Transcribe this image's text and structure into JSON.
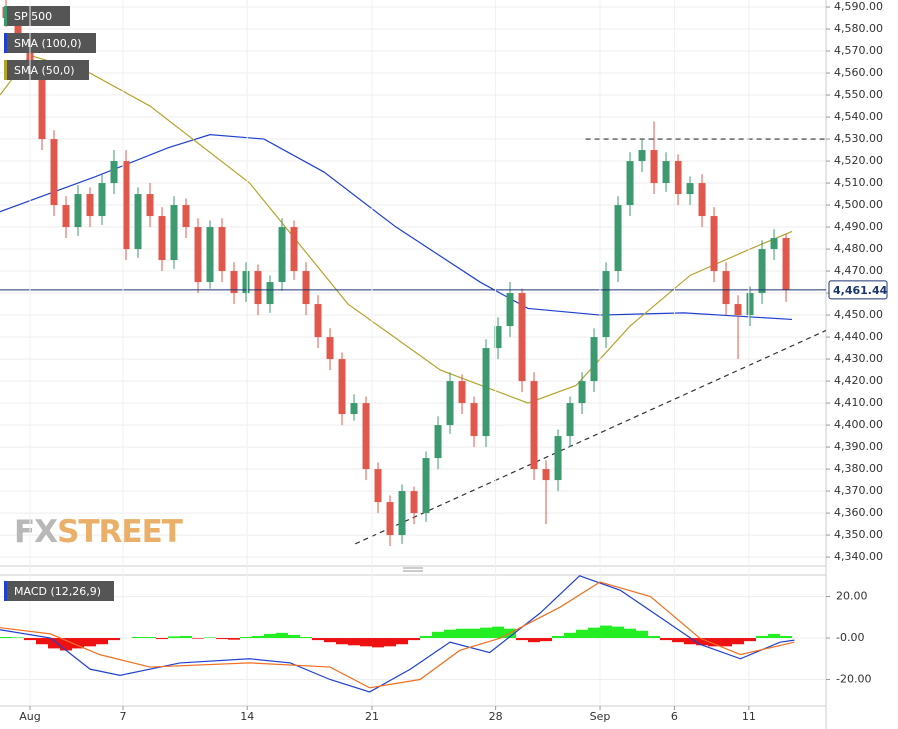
{
  "chart_data": [
    {
      "type": "candlestick",
      "name": "SP 500",
      "up_color": "#3d9970",
      "down_color": "#e0584c",
      "xlim": [
        0,
        68.83
      ],
      "ylim": [
        4336.4,
        4593.2
      ],
      "yticks": [
        {
          "value": 4340,
          "label": "4,340.00"
        },
        {
          "value": 4350,
          "label": "4,350.00"
        },
        {
          "value": 4360,
          "label": "4,360.00"
        },
        {
          "value": 4370,
          "label": "4,370.00"
        },
        {
          "value": 4380,
          "label": "4,380.00"
        },
        {
          "value": 4390,
          "label": "4,390.00"
        },
        {
          "value": 4400,
          "label": "4,400.00"
        },
        {
          "value": 4410,
          "label": "4,410.00"
        },
        {
          "value": 4420,
          "label": "4,420.00"
        },
        {
          "value": 4430,
          "label": "4,430.00"
        },
        {
          "value": 4440,
          "label": "4,440.00"
        },
        {
          "value": 4450,
          "label": "4,450.00"
        },
        {
          "value": 4460,
          "label": "4,460.00"
        },
        {
          "value": 4470,
          "label": "4,470.00"
        },
        {
          "value": 4480,
          "label": "4,480.00"
        },
        {
          "value": 4490,
          "label": "4,490.00"
        },
        {
          "value": 4500,
          "label": "4,500.00"
        },
        {
          "value": 4510,
          "label": "4,510.00"
        },
        {
          "value": 4520,
          "label": "4,520.00"
        },
        {
          "value": 4530,
          "label": "4,530.00"
        },
        {
          "value": 4540,
          "label": "4,540.00"
        },
        {
          "value": 4550,
          "label": "4,550.00"
        },
        {
          "value": 4560,
          "label": "4,560.00"
        },
        {
          "value": 4570,
          "label": "4,570.00"
        },
        {
          "value": 4580,
          "label": "4,580.00"
        },
        {
          "value": 4590,
          "label": "4,590.00"
        }
      ],
      "grid": true,
      "x": [
        0.5,
        1.5,
        2.5,
        3.5,
        4.5,
        5.5,
        6.5,
        7.5,
        8.5,
        9.5,
        10.5,
        11.5,
        12.5,
        13.5,
        14.5,
        15.5,
        16.5,
        17.5,
        18.5,
        19.5,
        20.5,
        21.5,
        22.5,
        23.5,
        24.5,
        25.5,
        26.5,
        27.5,
        28.5,
        29.5,
        30.5,
        31.5,
        32.5,
        33.5,
        34.5,
        35.5,
        36.5,
        37.5,
        38.5,
        39.5,
        40.5,
        41.5,
        42.5,
        43.5,
        44.5,
        45.5,
        46.5,
        47.5,
        48.5,
        49.5,
        50.5,
        51.5,
        52.5,
        53.5,
        54.5,
        55.5,
        56.5,
        57.5,
        58.5,
        59.5,
        60.5,
        61.5,
        62.5,
        63.5,
        64.5,
        65.5
      ],
      "open": [
        4590,
        4585,
        4575,
        4560,
        4530,
        4500,
        4490,
        4505,
        4495,
        4510,
        4520,
        4480,
        4505,
        4495,
        4475,
        4500,
        4490,
        4465,
        4490,
        4470,
        4460,
        4470,
        4455,
        4465,
        4490,
        4470,
        4455,
        4440,
        4430,
        4405,
        4410,
        4380,
        4365,
        4350,
        4370,
        4360,
        4385,
        4400,
        4420,
        4410,
        4395,
        4435,
        4445,
        4460,
        4420,
        4380,
        4375,
        4395,
        4410,
        4420,
        4440,
        4470,
        4500,
        4520,
        4525,
        4510,
        4520,
        4505,
        4510,
        4495,
        4470,
        4455,
        4450,
        4460,
        4480,
        4485
      ],
      "high": [
        4594,
        4589,
        4578,
        4563,
        4534,
        4504,
        4509,
        4508,
        4514,
        4525,
        4525,
        4508,
        4510,
        4499,
        4504,
        4503,
        4494,
        4493,
        4494,
        4474,
        4474,
        4473,
        4468,
        4494,
        4493,
        4474,
        4459,
        4444,
        4433,
        4414,
        4413,
        4383,
        4368,
        4373,
        4372,
        4388,
        4404,
        4424,
        4423,
        4413,
        4439,
        4449,
        4465,
        4462,
        4424,
        4384,
        4398,
        4413,
        4424,
        4444,
        4474,
        4504,
        4524,
        4530,
        4538,
        4524,
        4523,
        4513,
        4514,
        4499,
        4474,
        4459,
        4463,
        4484,
        4489,
        4487
      ],
      "low": [
        4581,
        4570,
        4555,
        4525,
        4495,
        4485,
        4486,
        4490,
        4491,
        4505,
        4475,
        4476,
        4490,
        4470,
        4471,
        4485,
        4460,
        4462,
        4465,
        4455,
        4456,
        4450,
        4451,
        4461,
        4466,
        4450,
        4435,
        4425,
        4400,
        4402,
        4375,
        4360,
        4345,
        4346,
        4355,
        4356,
        4380,
        4396,
        4405,
        4390,
        4390,
        4430,
        4440,
        4415,
        4375,
        4355,
        4370,
        4390,
        4405,
        4415,
        4435,
        4465,
        4495,
        4515,
        4505,
        4506,
        4500,
        4500,
        4490,
        4465,
        4450,
        4430,
        4445,
        4455,
        4475,
        4456
      ],
      "close": [
        4585,
        4575,
        4560,
        4530,
        4500,
        4490,
        4505,
        4495,
        4510,
        4520,
        4480,
        4505,
        4495,
        4475,
        4500,
        4490,
        4465,
        4490,
        4470,
        4460,
        4470,
        4455,
        4465,
        4490,
        4470,
        4455,
        4440,
        4430,
        4405,
        4410,
        4380,
        4365,
        4350,
        4370,
        4360,
        4385,
        4400,
        4420,
        4410,
        4395,
        4435,
        4445,
        4460,
        4420,
        4380,
        4375,
        4395,
        4410,
        4420,
        4440,
        4470,
        4500,
        4520,
        4525,
        4510,
        4520,
        4505,
        4510,
        4495,
        4470,
        4455,
        4450,
        4460,
        4480,
        4485,
        4461.44
      ],
      "series": [
        {
          "name": "SMA (100,0)",
          "color": "#2040d0",
          "x": [
            0,
            8,
            14,
            17.5,
            22,
            27,
            33,
            40,
            44,
            50,
            57,
            66
          ],
          "values": [
            4497,
            4513,
            4526,
            4532,
            4530,
            4515,
            4490,
            4465,
            4453,
            4450,
            4451,
            4448
          ]
        },
        {
          "name": "SMA (50,0)",
          "color": "#b5a42c",
          "x": [
            0,
            2.5,
            7.5,
            12.5,
            20.8,
            29,
            36.7,
            44,
            48,
            52.5,
            57.5,
            62.5,
            66
          ],
          "values": [
            4550,
            4568,
            4560,
            4545,
            4510,
            4455,
            4425,
            4410,
            4418,
            4445,
            4468,
            4480,
            4488
          ]
        }
      ],
      "reference_lines": [
        {
          "x": [
            48.8,
            68.83
          ],
          "values": [
            4530,
            4530
          ]
        },
        {
          "x": [
            29.6,
            68.83
          ],
          "values": [
            4346,
            4443
          ]
        }
      ],
      "last_price": {
        "value": 4461.44,
        "label": "4,461.44"
      },
      "watermark": [
        "FX",
        "STREET"
      ]
    },
    {
      "type": "macd",
      "title": "MACD (12,26,9)",
      "xlim": [
        0,
        68.83
      ],
      "ylim": [
        -32.3,
        30.4
      ],
      "yticks": [
        {
          "value": 20,
          "label": "20.00"
        },
        {
          "value": 0,
          "label": "-0.00"
        },
        {
          "value": -20,
          "label": "-20.00"
        }
      ],
      "xticks": [
        {
          "value": 2.5,
          "label": "Aug"
        },
        {
          "value": 10.25,
          "label": "7"
        },
        {
          "value": 20.6,
          "label": "14"
        },
        {
          "value": 31,
          "label": "21"
        },
        {
          "value": 41.3,
          "label": "28"
        },
        {
          "value": 50,
          "label": "Sep"
        },
        {
          "value": 56.2,
          "label": "6"
        },
        {
          "value": 62.4,
          "label": "11"
        }
      ],
      "histogram": {
        "up_color": "#22ee22",
        "down_color": "#ee1111",
        "x": [
          0.5,
          1.5,
          2.5,
          3.5,
          4.5,
          5.5,
          6.5,
          7.5,
          8.5,
          9.5,
          10.5,
          11.5,
          12.5,
          13.5,
          14.5,
          15.5,
          16.5,
          17.5,
          18.5,
          19.5,
          20.5,
          21.5,
          22.5,
          23.5,
          24.5,
          25.5,
          26.5,
          27.5,
          28.5,
          29.5,
          30.5,
          31.5,
          32.5,
          33.5,
          34.5,
          35.5,
          36.5,
          37.5,
          38.5,
          39.5,
          40.5,
          41.5,
          42.5,
          43.5,
          44.5,
          45.5,
          46.5,
          47.5,
          48.5,
          49.5,
          50.5,
          51.5,
          52.5,
          53.5,
          54.5,
          55.5,
          56.5,
          57.5,
          58.5,
          59.5,
          60.5,
          61.5,
          62.5,
          63.5,
          64.5,
          65.5
        ],
        "values": [
          0.5,
          0.3,
          -1,
          -3,
          -5,
          -6,
          -5,
          -4,
          -3,
          -1,
          0,
          0.5,
          0.5,
          -0.5,
          0.8,
          1,
          -0.3,
          0.3,
          -0.5,
          -0.8,
          0.5,
          1,
          2,
          2.5,
          1.5,
          0.5,
          -1,
          -2,
          -3,
          -3.5,
          -4,
          -4.5,
          -4,
          -3,
          -1,
          1,
          3,
          4,
          4.5,
          4.5,
          5,
          5.5,
          4.5,
          -1,
          -2,
          -1.5,
          1,
          2.5,
          4,
          5,
          6,
          5.5,
          4.5,
          3.5,
          1,
          -1,
          -2,
          -3,
          -3.5,
          -4,
          -4,
          -3,
          -1.5,
          1,
          2,
          1
        ]
      },
      "series": [
        {
          "color": "#2040d0",
          "x": [
            0,
            4.2,
            7.5,
            10,
            15,
            20.8,
            24.2,
            27.5,
            30.8,
            34.2,
            37.5,
            40.8,
            45,
            48.3,
            51.7,
            55,
            58.3,
            61.7,
            65,
            66.2
          ],
          "values": [
            4,
            0,
            -15,
            -18,
            -12,
            -10,
            -12,
            -20,
            -26,
            -15,
            -2,
            -7,
            12,
            30,
            23,
            10,
            -3,
            -10,
            -2,
            -1
          ]
        },
        {
          "color": "#f07020",
          "x": [
            0,
            4.2,
            8.3,
            12.5,
            20.8,
            27.5,
            30.8,
            35,
            38.3,
            41.7,
            46.7,
            50,
            54.2,
            58.3,
            61.7,
            66.2
          ],
          "values": [
            5,
            2,
            -8,
            -14,
            -12,
            -14,
            -24,
            -20,
            -6,
            0,
            15,
            27,
            20,
            0,
            -8,
            -2
          ]
        }
      ]
    }
  ]
}
